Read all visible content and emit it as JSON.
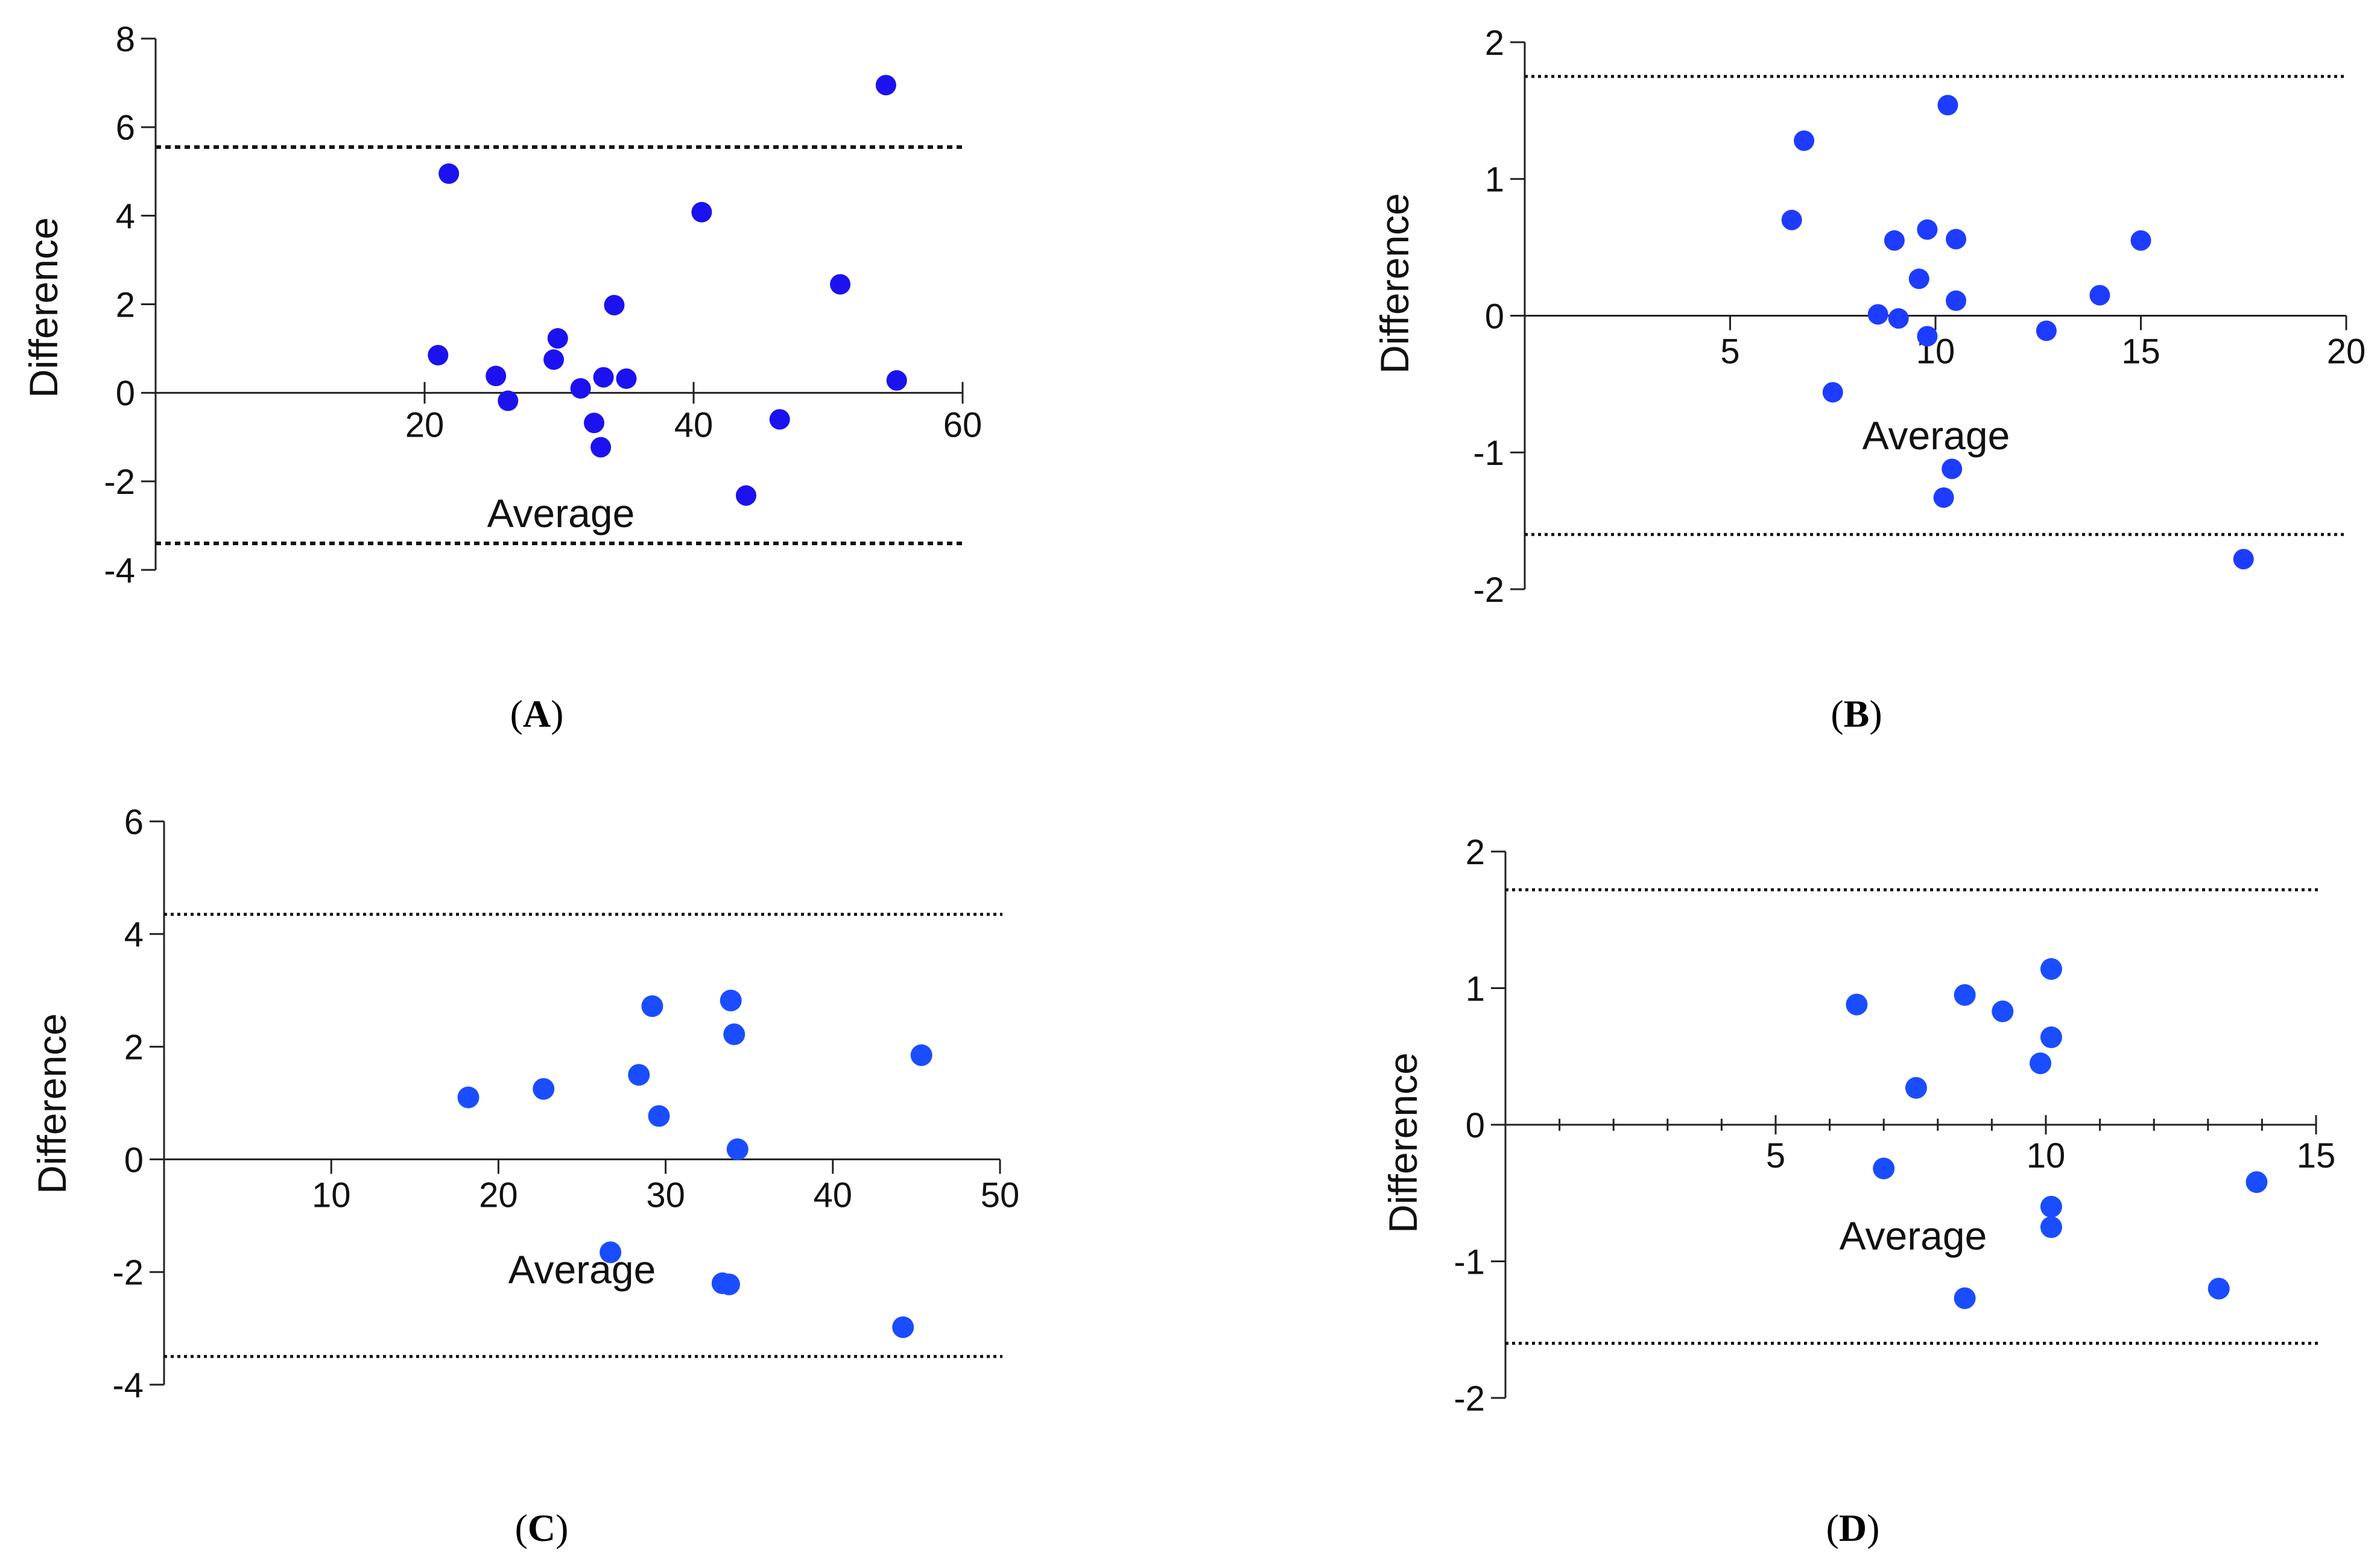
{
  "chart_data": [
    {
      "panel": "A",
      "type": "scatter",
      "xlabel": "Average",
      "ylabel": "Difference",
      "xlim": [
        0,
        60
      ],
      "ylim": [
        -4,
        8
      ],
      "xticks": [
        20,
        40,
        60
      ],
      "yticks": [
        -4,
        -2,
        0,
        2,
        4,
        6,
        8
      ],
      "tick_labels_x": [
        "20",
        "40",
        "60"
      ],
      "tick_labels_y": [
        "-4",
        "-2",
        "0",
        "2",
        "4",
        "6",
        "8"
      ],
      "limits_of_agreement": [
        5.55,
        -3.4
      ],
      "line_style": "dashed",
      "point_color": "#1c12f0",
      "points": [
        {
          "x": 21.0,
          "y": 0.85
        },
        {
          "x": 21.8,
          "y": 4.95
        },
        {
          "x": 25.3,
          "y": 0.38
        },
        {
          "x": 26.2,
          "y": -0.18
        },
        {
          "x": 29.6,
          "y": 0.75
        },
        {
          "x": 29.9,
          "y": 1.23
        },
        {
          "x": 31.6,
          "y": 0.1
        },
        {
          "x": 32.6,
          "y": -0.68
        },
        {
          "x": 33.1,
          "y": -1.23
        },
        {
          "x": 33.3,
          "y": 0.35
        },
        {
          "x": 34.1,
          "y": 1.98
        },
        {
          "x": 35.0,
          "y": 0.32
        },
        {
          "x": 40.6,
          "y": 4.08
        },
        {
          "x": 43.9,
          "y": -2.32
        },
        {
          "x": 46.4,
          "y": -0.6
        },
        {
          "x": 50.9,
          "y": 2.45
        },
        {
          "x": 54.3,
          "y": 6.95
        },
        {
          "x": 55.1,
          "y": 0.28
        }
      ],
      "caption": "(A)"
    },
    {
      "panel": "B",
      "type": "scatter",
      "xlabel": "Average",
      "ylabel": "Difference",
      "xlim": [
        0,
        20
      ],
      "ylim": [
        -2,
        2
      ],
      "xticks": [
        5,
        10,
        15,
        20
      ],
      "yticks": [
        -2,
        -1,
        0,
        1,
        2
      ],
      "tick_labels_x": [
        "5",
        "10",
        "15",
        "20"
      ],
      "tick_labels_y": [
        "-2",
        "-1",
        "0",
        "1",
        "2"
      ],
      "limits_of_agreement": [
        1.75,
        -1.6
      ],
      "line_style": "dotted",
      "point_color": "#1e3cff",
      "points": [
        {
          "x": 6.5,
          "y": 0.7
        },
        {
          "x": 6.8,
          "y": 1.28
        },
        {
          "x": 7.5,
          "y": -0.56
        },
        {
          "x": 8.6,
          "y": 0.01
        },
        {
          "x": 9.0,
          "y": 0.55
        },
        {
          "x": 9.1,
          "y": -0.02
        },
        {
          "x": 9.6,
          "y": 0.27
        },
        {
          "x": 9.8,
          "y": 0.63
        },
        {
          "x": 9.8,
          "y": -0.15
        },
        {
          "x": 10.3,
          "y": 1.54
        },
        {
          "x": 10.2,
          "y": -1.33
        },
        {
          "x": 10.4,
          "y": -1.12
        },
        {
          "x": 10.5,
          "y": 0.56
        },
        {
          "x": 10.5,
          "y": 0.11
        },
        {
          "x": 12.7,
          "y": -0.11
        },
        {
          "x": 14.0,
          "y": 0.15
        },
        {
          "x": 15.0,
          "y": 0.55
        },
        {
          "x": 17.5,
          "y": -1.78
        }
      ],
      "caption": "(B)"
    },
    {
      "panel": "C",
      "type": "scatter",
      "xlabel": "Average",
      "ylabel": "Difference",
      "xlim": [
        0,
        50
      ],
      "ylim": [
        -4,
        6
      ],
      "xticks": [
        10,
        20,
        30,
        40,
        50
      ],
      "yticks": [
        -4,
        -2,
        0,
        2,
        4,
        6
      ],
      "tick_labels_x": [
        "10",
        "20",
        "30",
        "40",
        "50"
      ],
      "tick_labels_y": [
        "-4",
        "-2",
        "0",
        "2",
        "4",
        "6"
      ],
      "limits_of_agreement": [
        4.35,
        -3.5
      ],
      "line_style": "dotted",
      "point_color": "#1a4dff",
      "points": [
        {
          "x": 18.2,
          "y": 1.1
        },
        {
          "x": 22.7,
          "y": 1.25
        },
        {
          "x": 26.7,
          "y": -1.65
        },
        {
          "x": 28.4,
          "y": 1.5
        },
        {
          "x": 29.2,
          "y": 2.72
        },
        {
          "x": 29.6,
          "y": 0.77
        },
        {
          "x": 33.4,
          "y": -2.2
        },
        {
          "x": 33.8,
          "y": -2.22
        },
        {
          "x": 33.9,
          "y": 2.82
        },
        {
          "x": 34.1,
          "y": 2.22
        },
        {
          "x": 34.3,
          "y": 0.18
        },
        {
          "x": 44.2,
          "y": -2.98
        },
        {
          "x": 45.3,
          "y": 1.85
        }
      ],
      "caption": "(C)"
    },
    {
      "panel": "D",
      "type": "scatter",
      "xlabel": "Average",
      "ylabel": "Difference",
      "xlim": [
        0,
        15
      ],
      "ylim": [
        -2,
        2
      ],
      "xticks": [
        5,
        10,
        15
      ],
      "yticks": [
        -2,
        -1,
        0,
        1,
        2
      ],
      "tick_labels_x": [
        "5",
        "10",
        "15"
      ],
      "tick_labels_y": [
        "-2",
        "-1",
        "0",
        "1",
        "2"
      ],
      "limits_of_agreement": [
        1.72,
        -1.6
      ],
      "line_style": "dotted",
      "point_color": "#1a4dff",
      "points": [
        {
          "x": 6.5,
          "y": 0.88
        },
        {
          "x": 7.0,
          "y": -0.32
        },
        {
          "x": 7.6,
          "y": 0.27
        },
        {
          "x": 8.5,
          "y": 0.95
        },
        {
          "x": 8.5,
          "y": -1.27
        },
        {
          "x": 9.2,
          "y": 0.83
        },
        {
          "x": 9.9,
          "y": 0.45
        },
        {
          "x": 10.1,
          "y": 1.14
        },
        {
          "x": 10.1,
          "y": 0.64
        },
        {
          "x": 10.1,
          "y": -0.6
        },
        {
          "x": 10.1,
          "y": -0.75
        },
        {
          "x": 13.2,
          "y": -1.2
        },
        {
          "x": 13.9,
          "y": -0.42
        }
      ],
      "caption": "(D)"
    }
  ]
}
